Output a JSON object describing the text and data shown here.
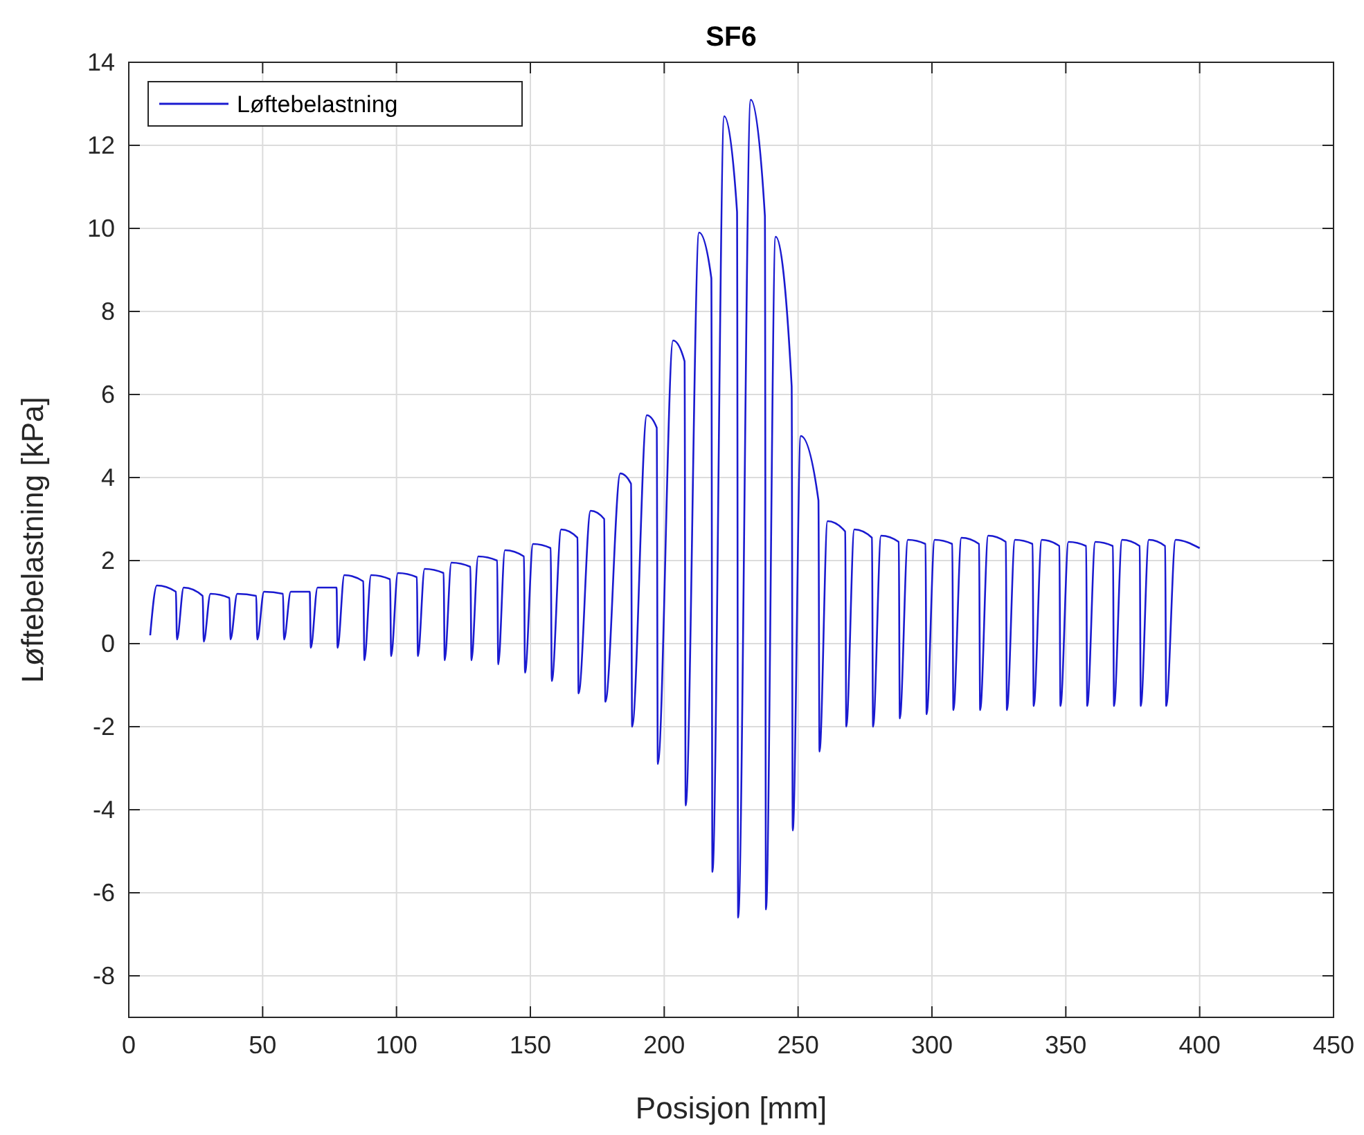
{
  "chart_data": {
    "type": "line",
    "title": "SF6",
    "xlabel": "Posisjon [mm]",
    "ylabel": "Løftebelastning [kPa]",
    "xlim": [
      0,
      450
    ],
    "xticks": [
      0,
      50,
      100,
      150,
      200,
      250,
      300,
      350,
      400,
      450
    ],
    "ylim": [
      -9,
      14
    ],
    "yticks": [
      -8,
      -6,
      -4,
      -2,
      0,
      2,
      4,
      6,
      8,
      10,
      12,
      14
    ],
    "grid": true,
    "legend": "top left",
    "line_style": "solid",
    "marker": "none",
    "series": [
      {
        "name": "Løftebelastning",
        "color": "#1a1ad0",
        "x": [
          8,
          10.5,
          17.6,
          18,
          20.5,
          27.6,
          28,
          30.5,
          37.6,
          38,
          40.5,
          47.6,
          48,
          50.5,
          57.6,
          58,
          60.5,
          67.6,
          68,
          70.5,
          77.6,
          78,
          80.5,
          87.6,
          88,
          90.5,
          97.6,
          98,
          100.5,
          107.6,
          108,
          110.5,
          117.6,
          118,
          120.5,
          127.6,
          128,
          130.5,
          137.6,
          138,
          140.5,
          147.6,
          148,
          151,
          157.6,
          158,
          161.5,
          167.6,
          168,
          172.5,
          177.6,
          178,
          183.6,
          187.6,
          188,
          193.5,
          197.2,
          197.6,
          203.3,
          207.6,
          208,
          213,
          217.6,
          218,
          222.4,
          227.2,
          227.6,
          232.3,
          237.6,
          238,
          241.6,
          247.6,
          248,
          251,
          257.6,
          258,
          261,
          267.6,
          268,
          271,
          277.6,
          278,
          281,
          287.6,
          288,
          291,
          297.6,
          298,
          301,
          307.6,
          308,
          311,
          317.6,
          318,
          321,
          327.6,
          328,
          331,
          337.6,
          338,
          341,
          347.6,
          348,
          351,
          357.6,
          358,
          361,
          367.6,
          368,
          371,
          377.6,
          378,
          381,
          387.1,
          387.5,
          391,
          400
        ],
        "values": [
          0.2,
          1.4,
          1.25,
          0.1,
          1.35,
          1.15,
          0.05,
          1.2,
          1.1,
          0.1,
          1.2,
          1.15,
          0.1,
          1.25,
          1.2,
          0.1,
          1.25,
          1.25,
          -0.1,
          1.35,
          1.35,
          -0.1,
          1.65,
          1.5,
          -0.4,
          1.65,
          1.55,
          -0.3,
          1.7,
          1.6,
          -0.3,
          1.8,
          1.7,
          -0.4,
          1.95,
          1.85,
          -0.4,
          2.1,
          2,
          -0.5,
          2.25,
          2.1,
          -0.7,
          2.4,
          2.3,
          -0.9,
          2.75,
          2.55,
          -1.2,
          3.2,
          3,
          -1.4,
          4.1,
          3.85,
          -2,
          5.5,
          5.2,
          -2.9,
          7.3,
          6.8,
          -3.9,
          9.9,
          8.8,
          -5.5,
          12.7,
          10.4,
          -6.6,
          13.1,
          10.3,
          -6.4,
          9.8,
          6.2,
          -4.5,
          5,
          3.45,
          -2.6,
          2.95,
          2.7,
          -2,
          2.75,
          2.55,
          -2,
          2.6,
          2.45,
          -1.8,
          2.5,
          2.4,
          -1.7,
          2.5,
          2.4,
          -1.6,
          2.55,
          2.4,
          -1.6,
          2.6,
          2.45,
          -1.6,
          2.5,
          2.4,
          -1.5,
          2.5,
          2.35,
          -1.5,
          2.45,
          2.35,
          -1.5,
          2.45,
          2.35,
          -1.5,
          2.5,
          2.35,
          -1.5,
          2.5,
          2.35,
          -1.5,
          2.5,
          2.3
        ]
      }
    ]
  }
}
